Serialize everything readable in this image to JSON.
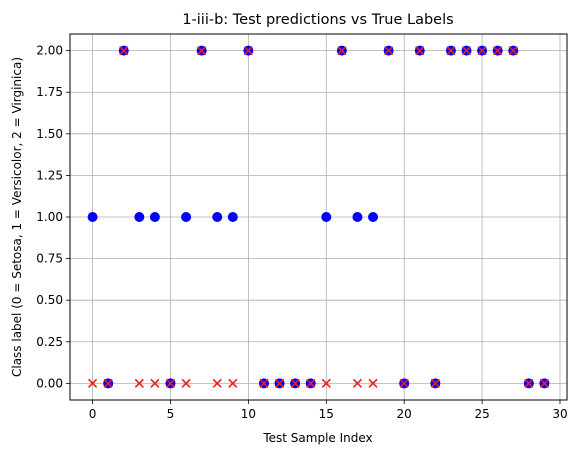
{
  "chart_data": {
    "type": "scatter",
    "title": "1-iii-b: Test predictions vs True Labels",
    "xlabel": "Test Sample Index",
    "ylabel": "Class label (0 = Setosa, 1 = Versicolor, 2 = Virginica)",
    "xlim": [
      -1.45,
      30.45
    ],
    "ylim": [
      -0.1,
      2.1
    ],
    "xticks": [
      0,
      5,
      10,
      15,
      20,
      25,
      30
    ],
    "xtick_labels": [
      "0",
      "5",
      "10",
      "15",
      "20",
      "25",
      "30"
    ],
    "yticks": [
      0,
      0.25,
      0.5,
      0.75,
      1,
      1.25,
      1.5,
      1.75,
      2
    ],
    "ytick_labels": [
      "0.00",
      "0.25",
      "0.50",
      "0.75",
      "1.00",
      "1.25",
      "1.50",
      "1.75",
      "2.00"
    ],
    "grid": true,
    "series": [
      {
        "marker": "circle",
        "color": "#0000ff",
        "x": [
          0,
          1,
          2,
          3,
          4,
          5,
          6,
          7,
          8,
          9,
          10,
          11,
          12,
          13,
          14,
          15,
          16,
          17,
          18,
          19,
          20,
          21,
          22,
          23,
          24,
          25,
          26,
          27,
          28,
          29
        ],
        "y": [
          1,
          0,
          2,
          1,
          1,
          0,
          1,
          2,
          1,
          1,
          2,
          0,
          0,
          0,
          0,
          1,
          2,
          1,
          1,
          2,
          0,
          2,
          0,
          2,
          2,
          2,
          2,
          2,
          0,
          0
        ]
      },
      {
        "marker": "x",
        "color": "#ee1c1c",
        "x": [
          0,
          1,
          2,
          3,
          4,
          5,
          6,
          7,
          8,
          9,
          10,
          11,
          12,
          13,
          14,
          15,
          16,
          17,
          18,
          19,
          20,
          21,
          22,
          23,
          24,
          25,
          26,
          27,
          28,
          29
        ],
        "y": [
          0,
          0,
          2,
          0,
          0,
          0,
          0,
          2,
          0,
          0,
          2,
          0,
          0,
          0,
          0,
          0,
          2,
          0,
          0,
          2,
          0,
          2,
          0,
          2,
          2,
          2,
          2,
          2,
          0,
          0
        ]
      }
    ]
  }
}
